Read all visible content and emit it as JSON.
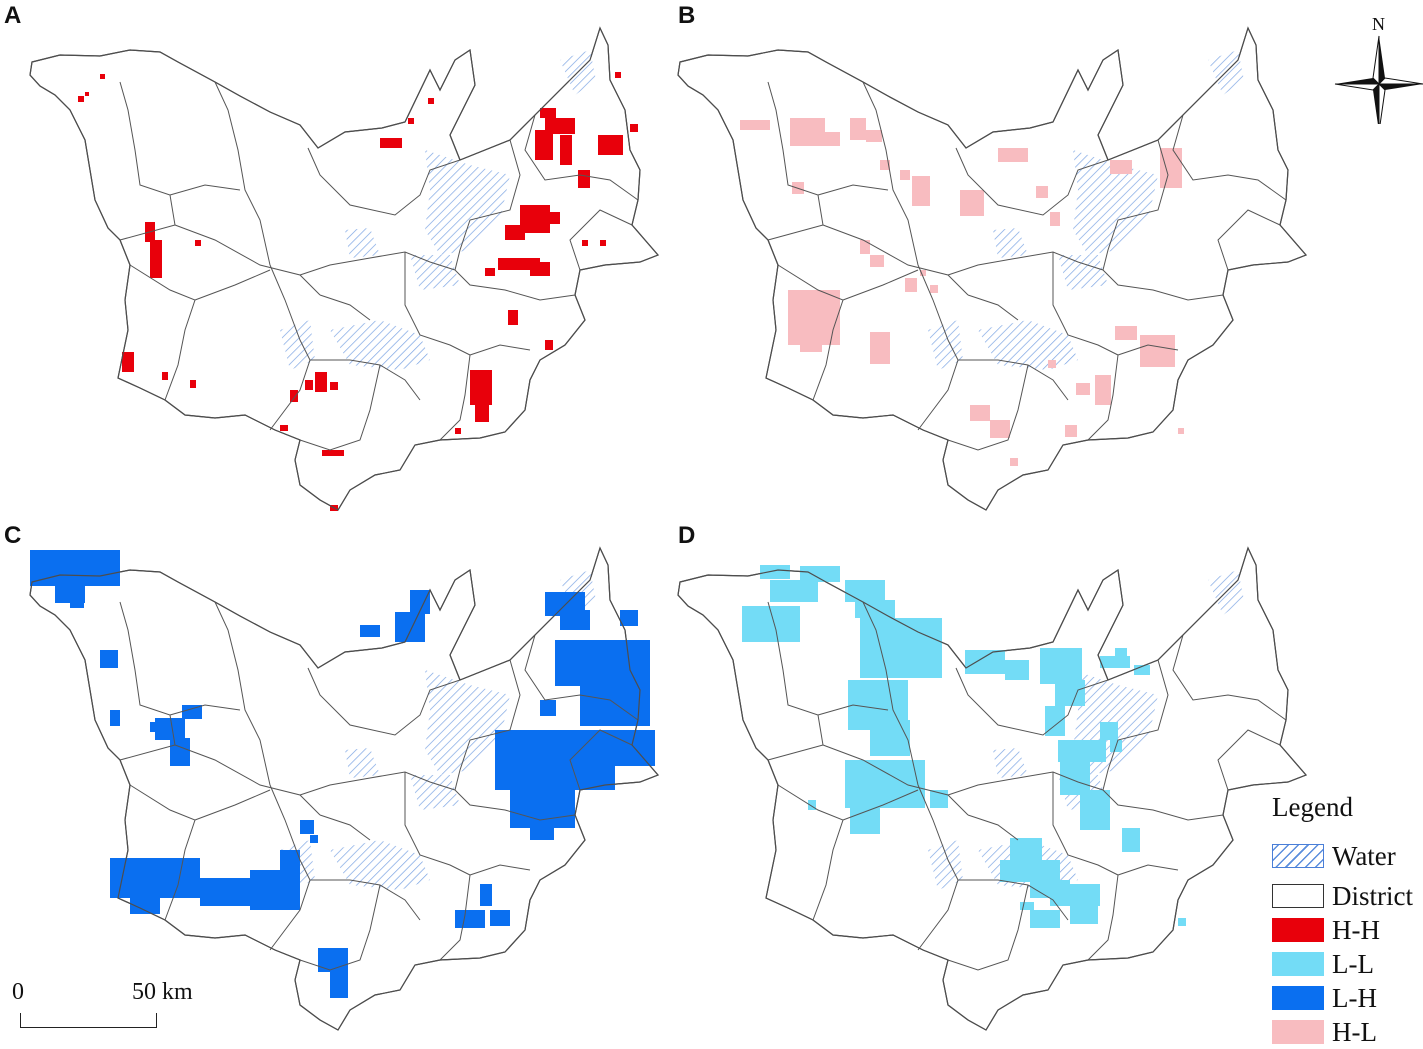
{
  "panels": [
    {
      "label": "A",
      "cluster": "H-H",
      "color": "#e8000b"
    },
    {
      "label": "B",
      "cluster": "H-L",
      "color": "#f8bcc0"
    },
    {
      "label": "C",
      "cluster": "L-H",
      "color": "#0a6ff0"
    },
    {
      "label": "D",
      "cluster": "L-L",
      "color": "#73dcf6"
    }
  ],
  "legend": {
    "title": "Legend",
    "items": [
      {
        "label": "Water",
        "kind": "hatch",
        "color": "#5a8ddc"
      },
      {
        "label": "District",
        "kind": "outline",
        "color": "#ffffff"
      },
      {
        "label": "H-H",
        "kind": "fill",
        "color": "#e8000b"
      },
      {
        "label": "L-L",
        "kind": "fill",
        "color": "#73dcf6"
      },
      {
        "label": "L-H",
        "kind": "fill",
        "color": "#0a6ff0"
      },
      {
        "label": "H-L",
        "kind": "fill",
        "color": "#f8bcc0"
      }
    ]
  },
  "scale_bar": {
    "start": "0",
    "end": "50 km"
  },
  "north_arrow": {
    "label": "N",
    "icon": "north-arrow-icon"
  }
}
